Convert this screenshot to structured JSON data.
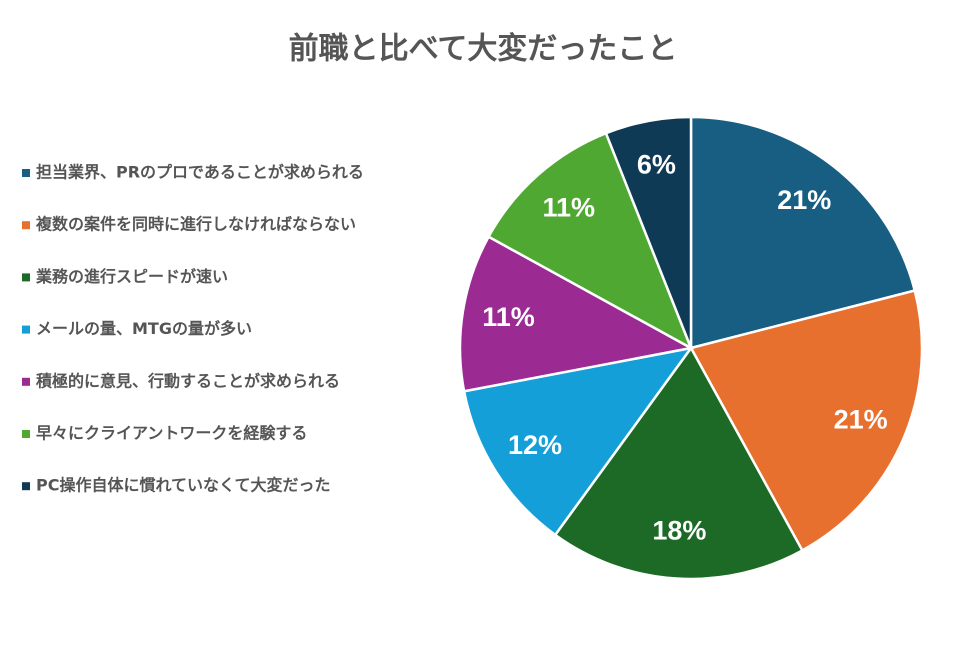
{
  "chart_data": {
    "type": "pie",
    "title": "前職と比べて大変だったこと",
    "categories": [
      "担当業界、PRのプロであることが求められる",
      "複数の案件を同時に進行しなければならない",
      "業務の進行スピードが速い",
      "メールの量、MTGの量が多い",
      "積極的に意見、行動することが求められる",
      "早々にクライアントワークを経験する",
      "PC操作自体に慣れていなくて大変だった"
    ],
    "values": [
      21,
      21,
      18,
      12,
      11,
      11,
      6
    ],
    "value_labels": [
      "21%",
      "21%",
      "18%",
      "12%",
      "11%",
      "11%",
      "6%"
    ],
    "colors": [
      "#175e82",
      "#e8702f",
      "#1c6a26",
      "#149fd8",
      "#9b2b93",
      "#4fa832",
      "#0f3a55"
    ],
    "legend": "left"
  }
}
